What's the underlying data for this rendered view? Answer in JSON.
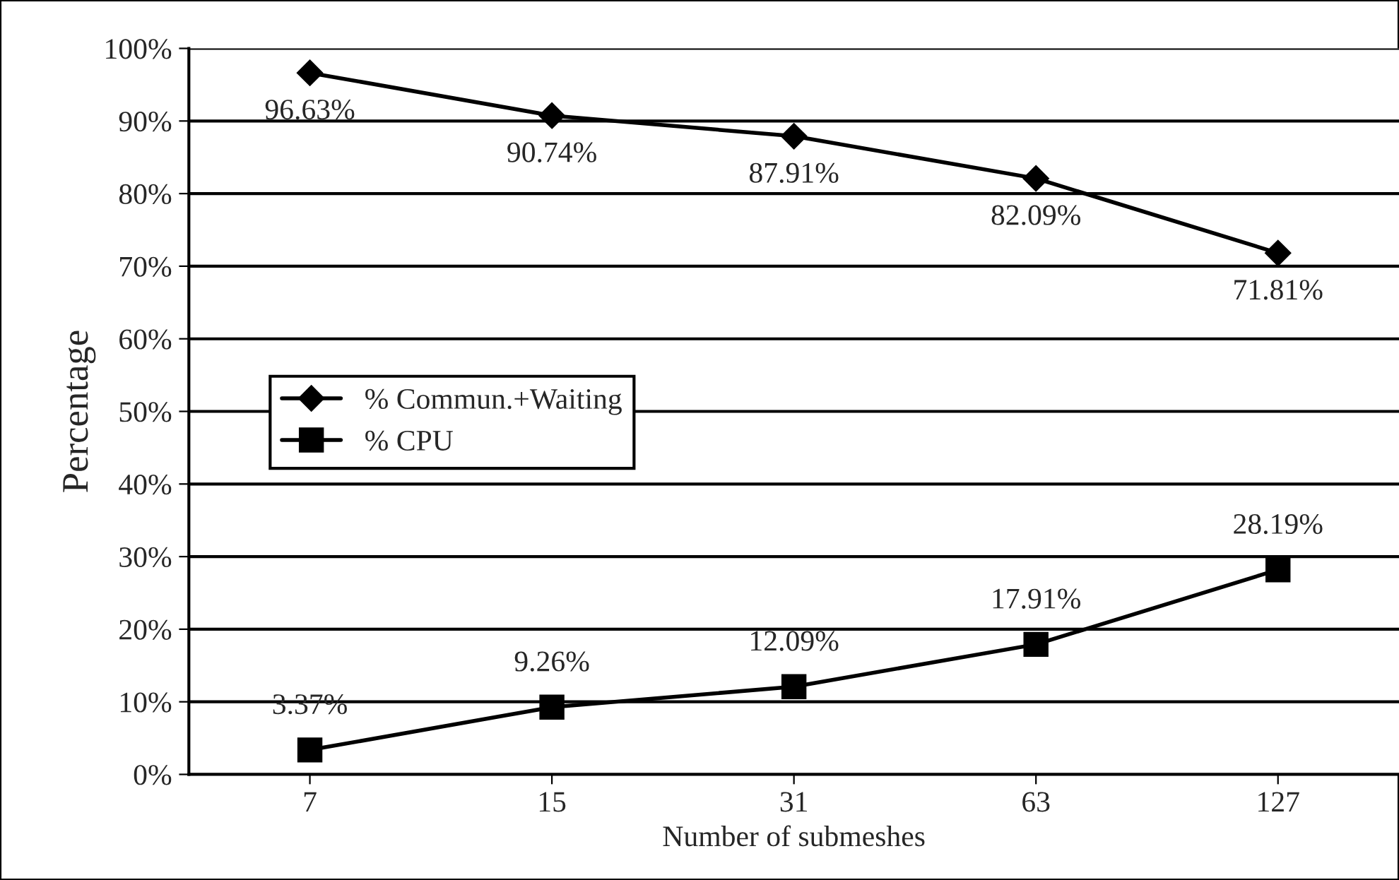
{
  "chart_data": {
    "type": "line",
    "xlabel": "Number of submeshes",
    "ylabel": "Percentage",
    "categories": [
      "7",
      "15",
      "31",
      "63",
      "127"
    ],
    "series": [
      {
        "name": "% Commun.+Waiting",
        "color": "#000000",
        "marker": "diamond",
        "values": [
          96.63,
          90.74,
          87.91,
          82.09,
          71.81
        ],
        "value_labels": [
          "96.63%",
          "90.74%",
          "87.91%",
          "82.09%",
          "71.81%"
        ]
      },
      {
        "name": "% CPU",
        "color": "#000000",
        "marker": "square",
        "values": [
          3.37,
          9.26,
          12.09,
          17.91,
          28.19
        ],
        "value_labels": [
          "3.37%",
          "9.26%",
          "12.09%",
          "17.91%",
          "28.19%"
        ]
      }
    ],
    "ylim": [
      0,
      100
    ],
    "yticks": [
      {
        "value": 0,
        "label": "0%"
      },
      {
        "value": 10,
        "label": "10%"
      },
      {
        "value": 20,
        "label": "20%"
      },
      {
        "value": 30,
        "label": "30%"
      },
      {
        "value": 40,
        "label": "40%"
      },
      {
        "value": 50,
        "label": "50%"
      },
      {
        "value": 60,
        "label": "60%"
      },
      {
        "value": 70,
        "label": "70%"
      },
      {
        "value": 80,
        "label": "80%"
      },
      {
        "value": 90,
        "label": "90%"
      },
      {
        "value": 100,
        "label": "100%"
      }
    ],
    "grid": "y",
    "legend": "center left",
    "line_style": "solid"
  }
}
